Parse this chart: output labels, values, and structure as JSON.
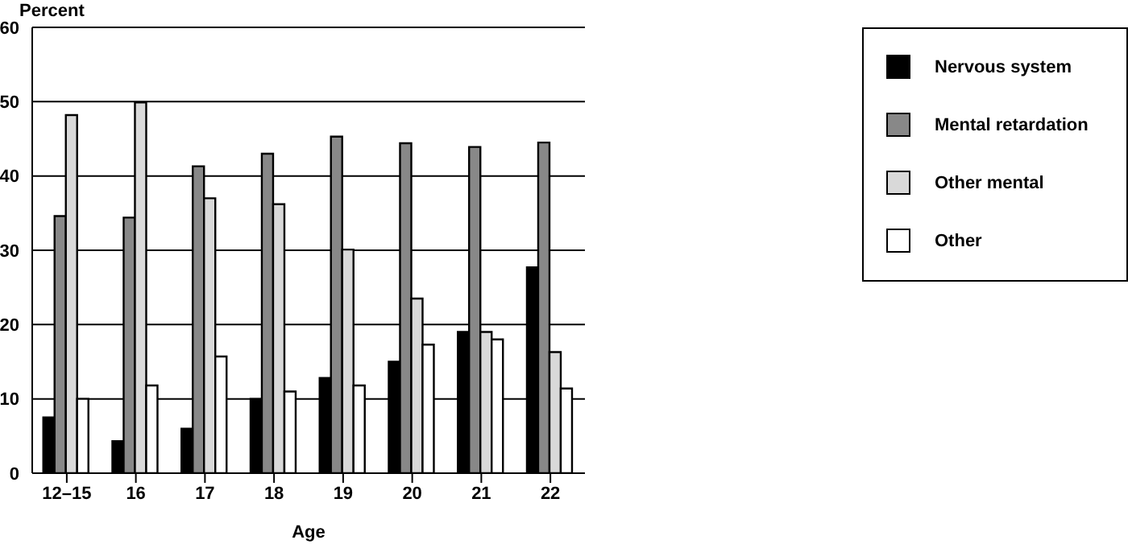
{
  "chart_data": {
    "type": "bar",
    "xlabel": "Age",
    "ylabel": "Percent",
    "categories": [
      "12–15",
      "16",
      "17",
      "18",
      "19",
      "20",
      "21",
      "22"
    ],
    "series": [
      {
        "name": "Nervous system",
        "color": "#000000",
        "values": [
          7.5,
          4.3,
          6,
          10,
          12.8,
          15,
          19,
          27.7
        ]
      },
      {
        "name": "Mental retardation",
        "color": "#888888",
        "values": [
          34.6,
          34.4,
          41.3,
          43,
          45.3,
          44.4,
          43.9,
          44.5
        ]
      },
      {
        "name": "Other mental",
        "color": "#d9d9d9",
        "values": [
          48.2,
          49.9,
          37,
          36.2,
          30.1,
          23.5,
          19,
          16.3
        ]
      },
      {
        "name": "Other",
        "color": "#ffffff",
        "values": [
          10,
          11.8,
          15.7,
          11,
          11.8,
          17.3,
          18,
          11.4
        ]
      }
    ],
    "ylim": [
      0,
      60
    ],
    "yticks": [
      0,
      10,
      20,
      30,
      40,
      50,
      60
    ],
    "grid": "y",
    "legend": "top right"
  }
}
